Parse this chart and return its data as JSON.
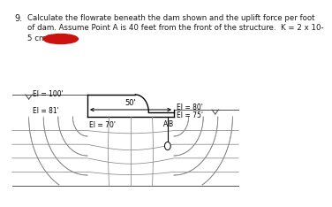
{
  "title_num": "9.",
  "highlight_color": "#cc1111",
  "bg_color": "#ffffff",
  "text_color": "#1a1a1a",
  "el_100": "El = 100'",
  "el_81": "El = 81'",
  "el_70": "El = 70'",
  "el_80": "El = 80'",
  "el_75": "El = 75'",
  "dim_50": "50'",
  "label_A": "A",
  "label_B": "B",
  "line1": "Calculate the flowrate beneath the dam shown and the uplift force per foot",
  "line2": "of dam. Assume Point A is 40 feet from the front of the structure.  K = 2 x 10-",
  "line3": "5 cm/sec"
}
